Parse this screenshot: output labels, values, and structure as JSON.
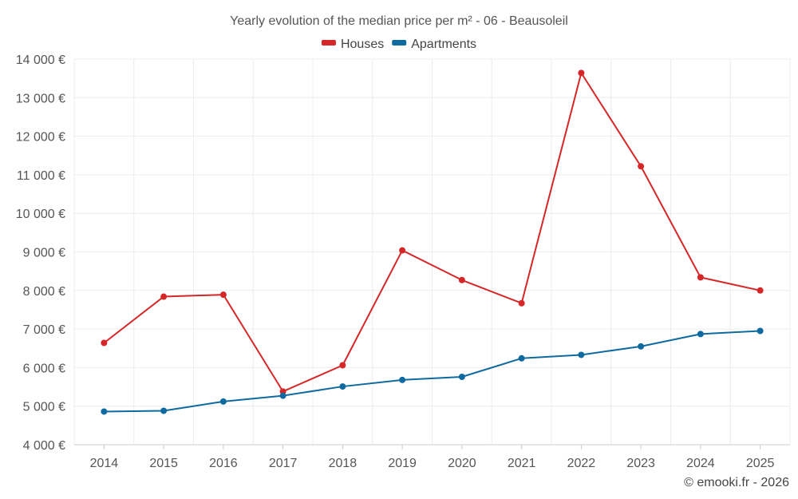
{
  "chart_data": {
    "type": "line",
    "title": "Yearly evolution of the median price per m² - 06 - Beausoleil",
    "categories": [
      "2014",
      "2015",
      "2016",
      "2017",
      "2018",
      "2019",
      "2020",
      "2021",
      "2022",
      "2023",
      "2024",
      "2025"
    ],
    "series": [
      {
        "name": "Houses",
        "color": "#d62728",
        "values": [
          6640,
          7840,
          7890,
          5380,
          6060,
          9040,
          8270,
          7670,
          13640,
          11220,
          8340,
          8000
        ]
      },
      {
        "name": "Apartments",
        "color": "#0f6aa0",
        "values": [
          4860,
          4880,
          5120,
          5270,
          5510,
          5680,
          5760,
          6240,
          6330,
          6550,
          6870,
          6950
        ]
      }
    ],
    "ylim": [
      4000,
      14000
    ],
    "yticks": [
      4000,
      5000,
      6000,
      7000,
      8000,
      9000,
      10000,
      11000,
      12000,
      13000,
      14000
    ],
    "ytick_labels": [
      "4 000 €",
      "5 000 €",
      "6 000 €",
      "7 000 €",
      "8 000 €",
      "9 000 €",
      "10 000 €",
      "11 000 €",
      "12 000 €",
      "13 000 €",
      "14 000 €"
    ],
    "legend_position": "top-center",
    "grid": true,
    "xlabel": "",
    "ylabel": ""
  },
  "credit": "© emooki.fr - 2026"
}
